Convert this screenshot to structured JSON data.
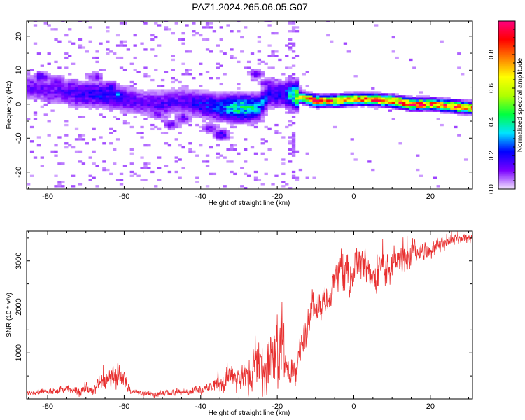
{
  "title": "PAZ1.2024.265.06.05.G07",
  "chart_data": [
    {
      "type": "heatmap",
      "xlabel": "Height of straight line (km)",
      "ylabel": "Frequency (Hz)",
      "xlim": [
        -85.5,
        31
      ],
      "ylim": [
        -25,
        24.5
      ],
      "xticks": [
        -80,
        -60,
        -40,
        -20,
        0,
        20
      ],
      "yticks": [
        -20,
        -10,
        0,
        10,
        20
      ],
      "colorbar": {
        "label": "Normalized spectral amplitude",
        "range": [
          0,
          1
        ],
        "ticks": [
          "0.0",
          "0.2",
          "0.4",
          "0.6",
          "0.8"
        ],
        "tick_values": [
          0,
          0.2,
          0.4,
          0.6,
          0.8
        ],
        "colormap": [
          "#f4e6ff",
          "#7a00ff",
          "#0000ff",
          "#00e5ff",
          "#00ff40",
          "#b0ff00",
          "#ffff00",
          "#ff8000",
          "#ff0000",
          "#ff0080"
        ]
      },
      "ridge": [
        {
          "x": -84,
          "f": 5,
          "a": 0.12
        },
        {
          "x": -78,
          "f": 4,
          "a": 0.12
        },
        {
          "x": -72,
          "f": 3,
          "a": 0.16
        },
        {
          "x": -66,
          "f": 3,
          "a": 0.2
        },
        {
          "x": -60,
          "f": 1.5,
          "a": 0.15
        },
        {
          "x": -55,
          "f": 0.5,
          "a": 0.12
        },
        {
          "x": -50,
          "f": 0,
          "a": 0.15
        },
        {
          "x": -45,
          "f": 1,
          "a": 0.13
        },
        {
          "x": -40,
          "f": 0,
          "a": 0.2
        },
        {
          "x": -35,
          "f": -1,
          "a": 0.24
        },
        {
          "x": -30,
          "f": -1,
          "a": 0.4
        },
        {
          "x": -25,
          "f": -1,
          "a": 0.32
        },
        {
          "x": -22,
          "f": 3,
          "a": 0.18
        },
        {
          "x": -18,
          "f": 3,
          "a": 0.2
        },
        {
          "x": -15,
          "f": 2.5,
          "a": 0.5
        },
        {
          "x": -10,
          "f": 1,
          "a": 0.85
        },
        {
          "x": -5,
          "f": 1,
          "a": 0.75
        },
        {
          "x": 0,
          "f": 1.5,
          "a": 0.7
        },
        {
          "x": 5,
          "f": 1.5,
          "a": 0.85
        },
        {
          "x": 10,
          "f": 1,
          "a": 0.8
        },
        {
          "x": 15,
          "f": 0,
          "a": 0.85
        },
        {
          "x": 20,
          "f": 0,
          "a": 0.85
        },
        {
          "x": 25,
          "f": -0.5,
          "a": 0.85
        },
        {
          "x": 30,
          "f": -1,
          "a": 0.8
        }
      ],
      "spots": [
        {
          "x": -82,
          "f": 8,
          "a": 0.2
        },
        {
          "x": -78,
          "f": 7,
          "a": 0.15
        },
        {
          "x": -80,
          "f": 2,
          "a": 0.12
        },
        {
          "x": -74,
          "f": 6,
          "a": 0.14
        },
        {
          "x": -70,
          "f": 5,
          "a": 0.15
        },
        {
          "x": -68,
          "f": 8,
          "a": 0.13
        },
        {
          "x": -64,
          "f": 5,
          "a": 0.2
        },
        {
          "x": -62,
          "f": 3,
          "a": 0.3
        },
        {
          "x": -58,
          "f": 2,
          "a": 0.18
        },
        {
          "x": -52,
          "f": -3,
          "a": 0.13
        },
        {
          "x": -48,
          "f": -6,
          "a": 0.15
        },
        {
          "x": -45,
          "f": -4,
          "a": 0.16
        },
        {
          "x": -38,
          "f": -7,
          "a": 0.14
        },
        {
          "x": -35,
          "f": -9,
          "a": 0.2
        },
        {
          "x": -26,
          "f": 9,
          "a": 0.14
        },
        {
          "x": -23,
          "f": 6,
          "a": 0.15
        },
        {
          "x": -19,
          "f": 5,
          "a": 0.14
        },
        {
          "x": -16,
          "f": 4,
          "a": 0.16
        }
      ]
    },
    {
      "type": "line",
      "xlabel": "Height of straight line (km)",
      "ylabel": "SNR (10 * v/v)",
      "xlim": [
        -85.5,
        31
      ],
      "ylim": [
        0,
        3650
      ],
      "xticks": [
        -80,
        -60,
        -40,
        -20,
        0,
        20
      ],
      "yticks": [
        1000,
        2000,
        3000
      ],
      "color": "#e83030",
      "envelope": [
        {
          "x": -85,
          "base": 70,
          "amp": 120
        },
        {
          "x": -75,
          "base": 120,
          "amp": 160
        },
        {
          "x": -68,
          "base": 150,
          "amp": 250
        },
        {
          "x": -62,
          "base": 250,
          "amp": 600
        },
        {
          "x": -58,
          "base": 100,
          "amp": 130
        },
        {
          "x": -50,
          "base": 60,
          "amp": 120
        },
        {
          "x": -45,
          "base": 80,
          "amp": 140
        },
        {
          "x": -38,
          "base": 150,
          "amp": 200
        },
        {
          "x": -33,
          "base": 250,
          "amp": 500
        },
        {
          "x": -29,
          "base": 250,
          "amp": 500
        },
        {
          "x": -26,
          "base": 300,
          "amp": 1000
        },
        {
          "x": -22,
          "base": 250,
          "amp": 1400
        },
        {
          "x": -19,
          "base": 300,
          "amp": 1900
        },
        {
          "x": -17,
          "base": 150,
          "amp": 600
        },
        {
          "x": -15,
          "base": 600,
          "amp": 700
        },
        {
          "x": -12,
          "base": 1500,
          "amp": 800
        },
        {
          "x": -8,
          "base": 1800,
          "amp": 700
        },
        {
          "x": -4,
          "base": 2300,
          "amp": 700
        },
        {
          "x": 0,
          "base": 2600,
          "amp": 800
        },
        {
          "x": 5,
          "base": 2500,
          "amp": 700
        },
        {
          "x": 10,
          "base": 2600,
          "amp": 700
        },
        {
          "x": 15,
          "base": 2900,
          "amp": 550
        },
        {
          "x": 20,
          "base": 3100,
          "amp": 400
        },
        {
          "x": 25,
          "base": 3350,
          "amp": 300
        },
        {
          "x": 31,
          "base": 3450,
          "amp": 200
        }
      ]
    }
  ]
}
